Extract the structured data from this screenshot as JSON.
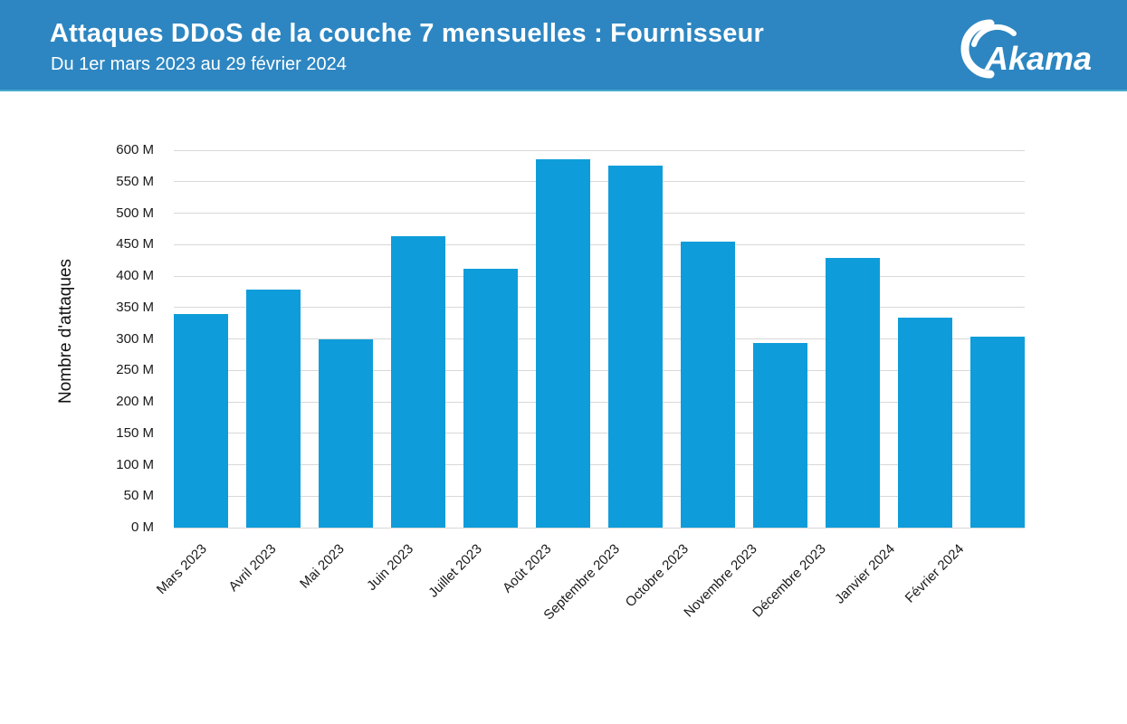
{
  "header": {
    "background_color": "#2D86C1",
    "edge_color": "#4BA9CE"
  },
  "logo": {
    "text": "Akamai"
  },
  "chart_data": {
    "type": "bar",
    "title": "Attaques DDoS de la couche 7 mensuelles : Fournisseur",
    "subtitle": "Du 1er mars 2023 au 29 février 2024",
    "categories": [
      "Mars 2023",
      "Avril 2023",
      "Mai 2023",
      "Juin 2023",
      "Juillet 2023",
      "Août 2023",
      "Septembre 2023",
      "Octobre 2023",
      "Novembre 2023",
      "Décembre 2023",
      "Janvier 2024",
      "Février 2024"
    ],
    "values": [
      339,
      378,
      300,
      463,
      412,
      585,
      575,
      454,
      293,
      429,
      334,
      304
    ],
    "unit": "M",
    "xlabel": "",
    "ylabel": "Nombre d'attaques",
    "y_ticks": [
      "0 M",
      "50 M",
      "100 M",
      "150 M",
      "200 M",
      "250 M",
      "300 M",
      "350 M",
      "400 M",
      "450 M",
      "500 M",
      "550 M",
      "600 M"
    ],
    "y_tick_step": 50,
    "ylim": [
      0,
      600
    ],
    "grid": "horizontal",
    "legend": "none",
    "bar_color": "#0E9DDA"
  }
}
